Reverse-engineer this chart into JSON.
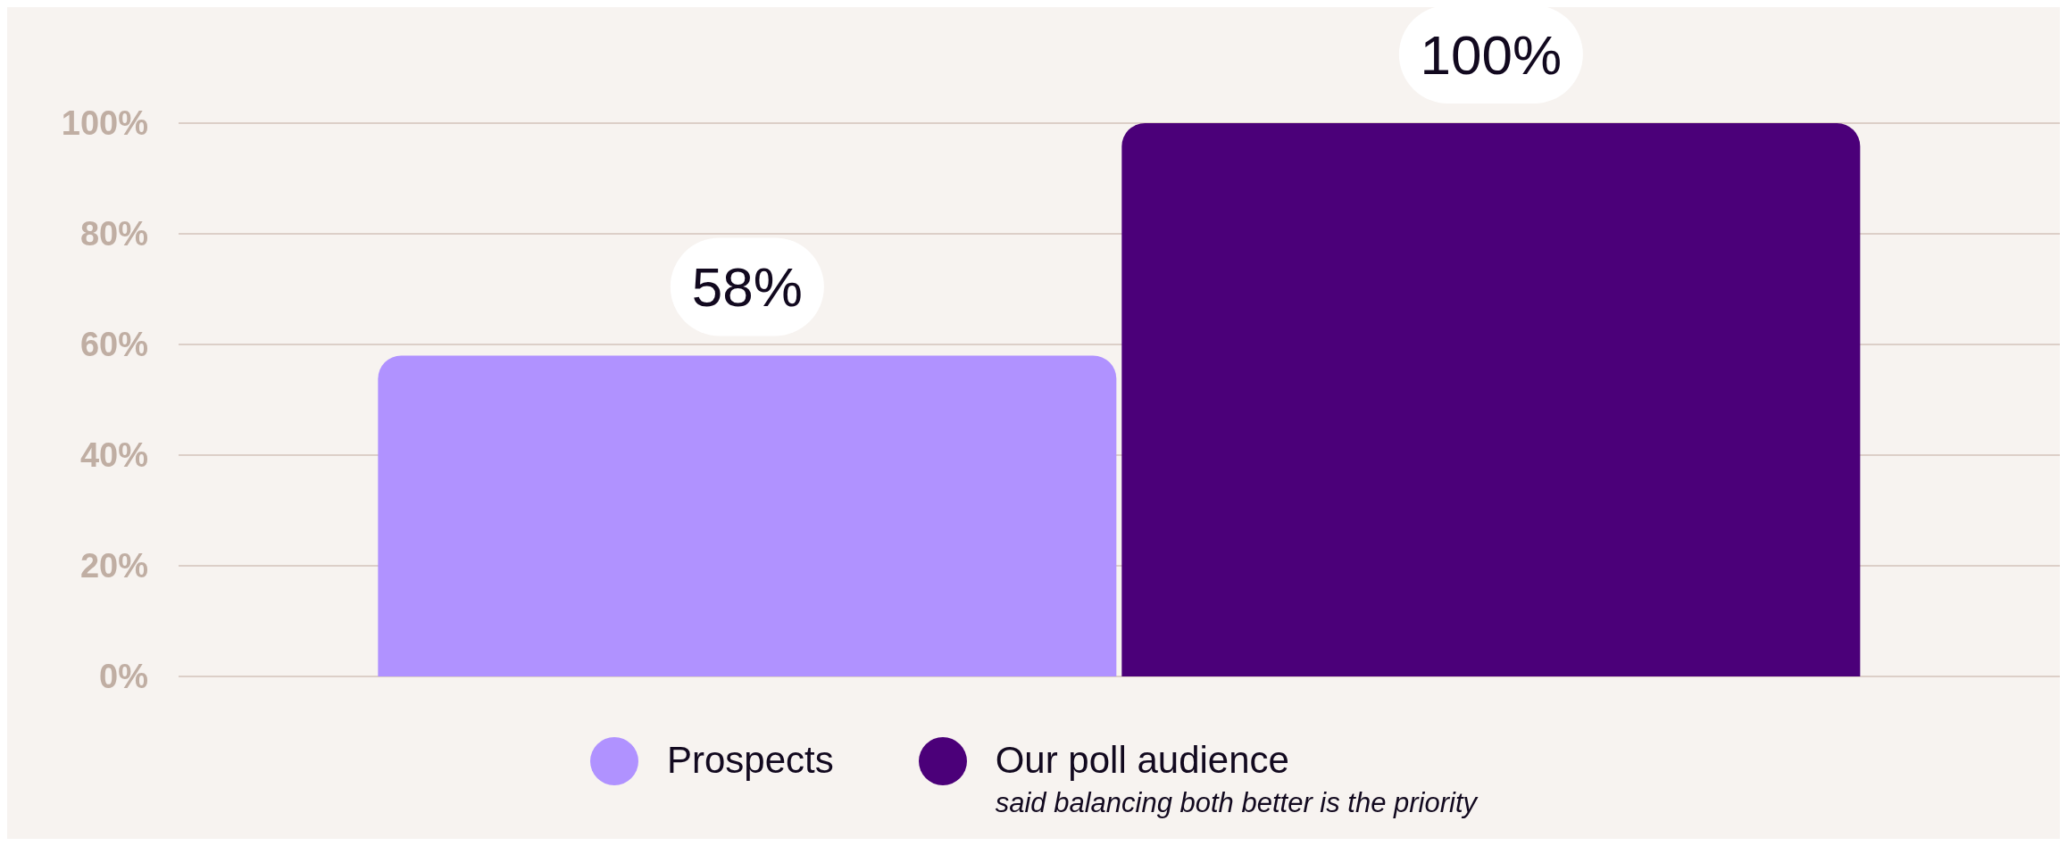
{
  "chart_data": {
    "type": "bar",
    "categories": [
      null
    ],
    "series": [
      {
        "name": "Prospects",
        "color": "#b092ff",
        "values": [
          58
        ]
      },
      {
        "name": "Our poll audience",
        "color": "#4b0079",
        "values": [
          100
        ]
      }
    ],
    "ylim": [
      0,
      100
    ],
    "yticks": [
      {
        "value": 0,
        "label": "0%"
      },
      {
        "value": 20,
        "label": "20%"
      },
      {
        "value": 40,
        "label": "40%"
      },
      {
        "value": 60,
        "label": "60%"
      },
      {
        "value": 80,
        "label": "80%"
      },
      {
        "value": 100,
        "label": "100%"
      }
    ],
    "grid": "y",
    "legend": "bottom",
    "tick_labels": "y",
    "value_labels": [
      [
        "58%"
      ],
      [
        "100%"
      ]
    ],
    "annotations": [
      "said balancing both better is the priority"
    ]
  }
}
